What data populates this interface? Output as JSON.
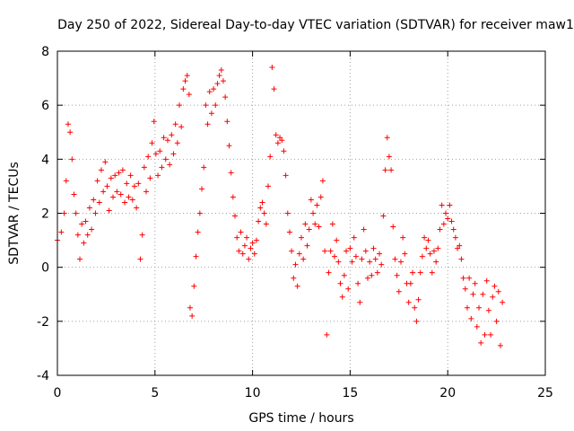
{
  "chart_data": {
    "type": "scatter",
    "title": "Day 250 of 2022, Sidereal Day-to-day VTEC variation (SDTVAR) for receiver maw1",
    "xlabel": "GPS time / hours",
    "ylabel": "SDTVAR / TECUs",
    "xlim": [
      0,
      25
    ],
    "ylim": [
      -4,
      8
    ],
    "xticks": [
      "0",
      "5",
      "10",
      "15",
      "20",
      "25"
    ],
    "yticks": [
      "-4",
      "-2",
      "0",
      "2",
      "4",
      "6",
      "8"
    ],
    "grid": true,
    "marker": "+",
    "marker_color": "#ff0000",
    "series": [
      {
        "name": "SDTVAR",
        "points": [
          [
            0.0,
            1.0
          ],
          [
            0.2,
            1.3
          ],
          [
            0.35,
            2.0
          ],
          [
            0.45,
            3.2
          ],
          [
            0.55,
            5.3
          ],
          [
            0.65,
            5.0
          ],
          [
            0.75,
            4.0
          ],
          [
            0.85,
            2.7
          ],
          [
            0.95,
            2.0
          ],
          [
            1.05,
            1.2
          ],
          [
            1.15,
            0.3
          ],
          [
            1.25,
            1.6
          ],
          [
            1.35,
            0.9
          ],
          [
            1.45,
            1.7
          ],
          [
            1.55,
            1.2
          ],
          [
            1.65,
            2.2
          ],
          [
            1.75,
            1.4
          ],
          [
            1.85,
            2.5
          ],
          [
            1.95,
            2.0
          ],
          [
            2.05,
            3.2
          ],
          [
            2.15,
            2.4
          ],
          [
            2.25,
            3.6
          ],
          [
            2.35,
            2.8
          ],
          [
            2.45,
            3.9
          ],
          [
            2.55,
            3.0
          ],
          [
            2.65,
            2.1
          ],
          [
            2.75,
            3.3
          ],
          [
            2.85,
            2.6
          ],
          [
            2.95,
            3.4
          ],
          [
            3.05,
            2.8
          ],
          [
            3.15,
            3.5
          ],
          [
            3.25,
            2.7
          ],
          [
            3.35,
            3.6
          ],
          [
            3.45,
            2.4
          ],
          [
            3.55,
            3.1
          ],
          [
            3.65,
            2.6
          ],
          [
            3.75,
            3.4
          ],
          [
            3.85,
            2.5
          ],
          [
            3.95,
            3.0
          ],
          [
            4.05,
            2.2
          ],
          [
            4.15,
            3.1
          ],
          [
            4.25,
            0.3
          ],
          [
            4.35,
            1.2
          ],
          [
            4.45,
            3.7
          ],
          [
            4.55,
            2.8
          ],
          [
            4.65,
            4.1
          ],
          [
            4.75,
            3.3
          ],
          [
            4.85,
            4.6
          ],
          [
            4.95,
            5.4
          ],
          [
            5.05,
            4.2
          ],
          [
            5.15,
            3.4
          ],
          [
            5.25,
            4.3
          ],
          [
            5.35,
            3.7
          ],
          [
            5.45,
            4.8
          ],
          [
            5.55,
            4.0
          ],
          [
            5.65,
            4.7
          ],
          [
            5.75,
            3.8
          ],
          [
            5.85,
            4.9
          ],
          [
            5.95,
            4.2
          ],
          [
            6.05,
            5.3
          ],
          [
            6.15,
            4.6
          ],
          [
            6.25,
            6.0
          ],
          [
            6.35,
            5.2
          ],
          [
            6.45,
            6.6
          ],
          [
            6.55,
            6.9
          ],
          [
            6.65,
            7.1
          ],
          [
            6.75,
            6.4
          ],
          [
            6.8,
            -1.5
          ],
          [
            6.9,
            -1.8
          ],
          [
            7.0,
            -0.7
          ],
          [
            7.1,
            0.4
          ],
          [
            7.2,
            1.3
          ],
          [
            7.3,
            2.0
          ],
          [
            7.4,
            2.9
          ],
          [
            7.5,
            3.7
          ],
          [
            7.6,
            6.0
          ],
          [
            7.7,
            5.3
          ],
          [
            7.8,
            6.5
          ],
          [
            7.9,
            5.7
          ],
          [
            8.0,
            6.6
          ],
          [
            8.1,
            6.0
          ],
          [
            8.2,
            6.8
          ],
          [
            8.3,
            7.1
          ],
          [
            8.4,
            7.3
          ],
          [
            8.5,
            6.9
          ],
          [
            8.6,
            6.3
          ],
          [
            8.7,
            5.4
          ],
          [
            8.8,
            4.5
          ],
          [
            8.9,
            3.5
          ],
          [
            9.0,
            2.6
          ],
          [
            9.1,
            1.9
          ],
          [
            9.2,
            1.1
          ],
          [
            9.3,
            0.6
          ],
          [
            9.4,
            1.3
          ],
          [
            9.5,
            0.5
          ],
          [
            9.6,
            0.8
          ],
          [
            9.7,
            1.1
          ],
          [
            9.8,
            0.3
          ],
          [
            9.9,
            0.7
          ],
          [
            10.0,
            0.9
          ],
          [
            10.1,
            0.5
          ],
          [
            10.2,
            1.0
          ],
          [
            10.3,
            1.7
          ],
          [
            10.4,
            2.2
          ],
          [
            10.5,
            2.4
          ],
          [
            10.6,
            2.0
          ],
          [
            10.7,
            1.6
          ],
          [
            10.8,
            3.0
          ],
          [
            10.9,
            4.1
          ],
          [
            11.0,
            7.4
          ],
          [
            11.1,
            6.6
          ],
          [
            11.2,
            4.9
          ],
          [
            11.3,
            4.6
          ],
          [
            11.4,
            4.8
          ],
          [
            11.5,
            4.7
          ],
          [
            11.6,
            4.3
          ],
          [
            11.7,
            3.4
          ],
          [
            11.8,
            2.0
          ],
          [
            11.9,
            1.3
          ],
          [
            12.0,
            0.6
          ],
          [
            12.1,
            -0.4
          ],
          [
            12.2,
            0.1
          ],
          [
            12.3,
            -0.7
          ],
          [
            12.4,
            0.5
          ],
          [
            12.5,
            1.1
          ],
          [
            12.6,
            0.3
          ],
          [
            12.7,
            1.6
          ],
          [
            12.8,
            0.8
          ],
          [
            12.9,
            1.4
          ],
          [
            13.0,
            2.5
          ],
          [
            13.1,
            2.0
          ],
          [
            13.2,
            1.6
          ],
          [
            13.3,
            2.3
          ],
          [
            13.4,
            1.5
          ],
          [
            13.5,
            2.6
          ],
          [
            13.6,
            3.2
          ],
          [
            13.7,
            0.6
          ],
          [
            13.8,
            -2.5
          ],
          [
            13.9,
            -0.2
          ],
          [
            14.0,
            0.6
          ],
          [
            14.1,
            1.6
          ],
          [
            14.2,
            0.4
          ],
          [
            14.3,
            1.0
          ],
          [
            14.4,
            0.2
          ],
          [
            14.5,
            -0.6
          ],
          [
            14.6,
            -1.1
          ],
          [
            14.7,
            -0.3
          ],
          [
            14.8,
            0.6
          ],
          [
            14.9,
            -0.8
          ],
          [
            15.0,
            0.7
          ],
          [
            15.1,
            0.2
          ],
          [
            15.2,
            1.1
          ],
          [
            15.3,
            0.4
          ],
          [
            15.4,
            -0.6
          ],
          [
            15.5,
            -1.3
          ],
          [
            15.6,
            0.3
          ],
          [
            15.7,
            1.4
          ],
          [
            15.8,
            0.6
          ],
          [
            15.9,
            -0.4
          ],
          [
            16.0,
            0.2
          ],
          [
            16.1,
            -0.3
          ],
          [
            16.2,
            0.7
          ],
          [
            16.3,
            0.3
          ],
          [
            16.4,
            -0.2
          ],
          [
            16.5,
            0.5
          ],
          [
            16.6,
            0.1
          ],
          [
            16.7,
            1.9
          ],
          [
            16.8,
            3.6
          ],
          [
            16.9,
            4.8
          ],
          [
            17.0,
            4.1
          ],
          [
            17.1,
            3.6
          ],
          [
            17.2,
            1.5
          ],
          [
            17.3,
            0.3
          ],
          [
            17.4,
            -0.3
          ],
          [
            17.5,
            -0.9
          ],
          [
            17.6,
            0.2
          ],
          [
            17.7,
            1.1
          ],
          [
            17.8,
            0.5
          ],
          [
            17.9,
            -0.6
          ],
          [
            18.0,
            -1.3
          ],
          [
            18.1,
            -0.6
          ],
          [
            18.2,
            -0.2
          ],
          [
            18.3,
            -1.5
          ],
          [
            18.4,
            -2.0
          ],
          [
            18.5,
            -1.2
          ],
          [
            18.6,
            -0.2
          ],
          [
            18.7,
            0.4
          ],
          [
            18.8,
            1.1
          ],
          [
            18.9,
            0.7
          ],
          [
            19.0,
            1.0
          ],
          [
            19.1,
            0.5
          ],
          [
            19.2,
            -0.2
          ],
          [
            19.3,
            0.6
          ],
          [
            19.4,
            0.2
          ],
          [
            19.5,
            0.7
          ],
          [
            19.6,
            1.4
          ],
          [
            19.7,
            2.3
          ],
          [
            19.8,
            1.6
          ],
          [
            19.9,
            2.0
          ],
          [
            20.0,
            1.8
          ],
          [
            20.1,
            2.3
          ],
          [
            20.2,
            1.7
          ],
          [
            20.3,
            1.4
          ],
          [
            20.4,
            1.1
          ],
          [
            20.5,
            0.7
          ],
          [
            20.6,
            0.8
          ],
          [
            20.7,
            0.3
          ],
          [
            20.8,
            -0.4
          ],
          [
            20.9,
            -0.8
          ],
          [
            21.0,
            -1.5
          ],
          [
            21.1,
            -0.4
          ],
          [
            21.2,
            -1.9
          ],
          [
            21.3,
            -1.0
          ],
          [
            21.4,
            -0.6
          ],
          [
            21.5,
            -2.2
          ],
          [
            21.6,
            -1.5
          ],
          [
            21.7,
            -2.8
          ],
          [
            21.8,
            -1.0
          ],
          [
            21.9,
            -2.5
          ],
          [
            22.0,
            -0.5
          ],
          [
            22.1,
            -1.6
          ],
          [
            22.2,
            -2.5
          ],
          [
            22.3,
            -1.1
          ],
          [
            22.4,
            -0.7
          ],
          [
            22.5,
            -2.0
          ],
          [
            22.6,
            -0.9
          ],
          [
            22.7,
            -2.9
          ],
          [
            22.8,
            -1.3
          ]
        ]
      }
    ]
  }
}
